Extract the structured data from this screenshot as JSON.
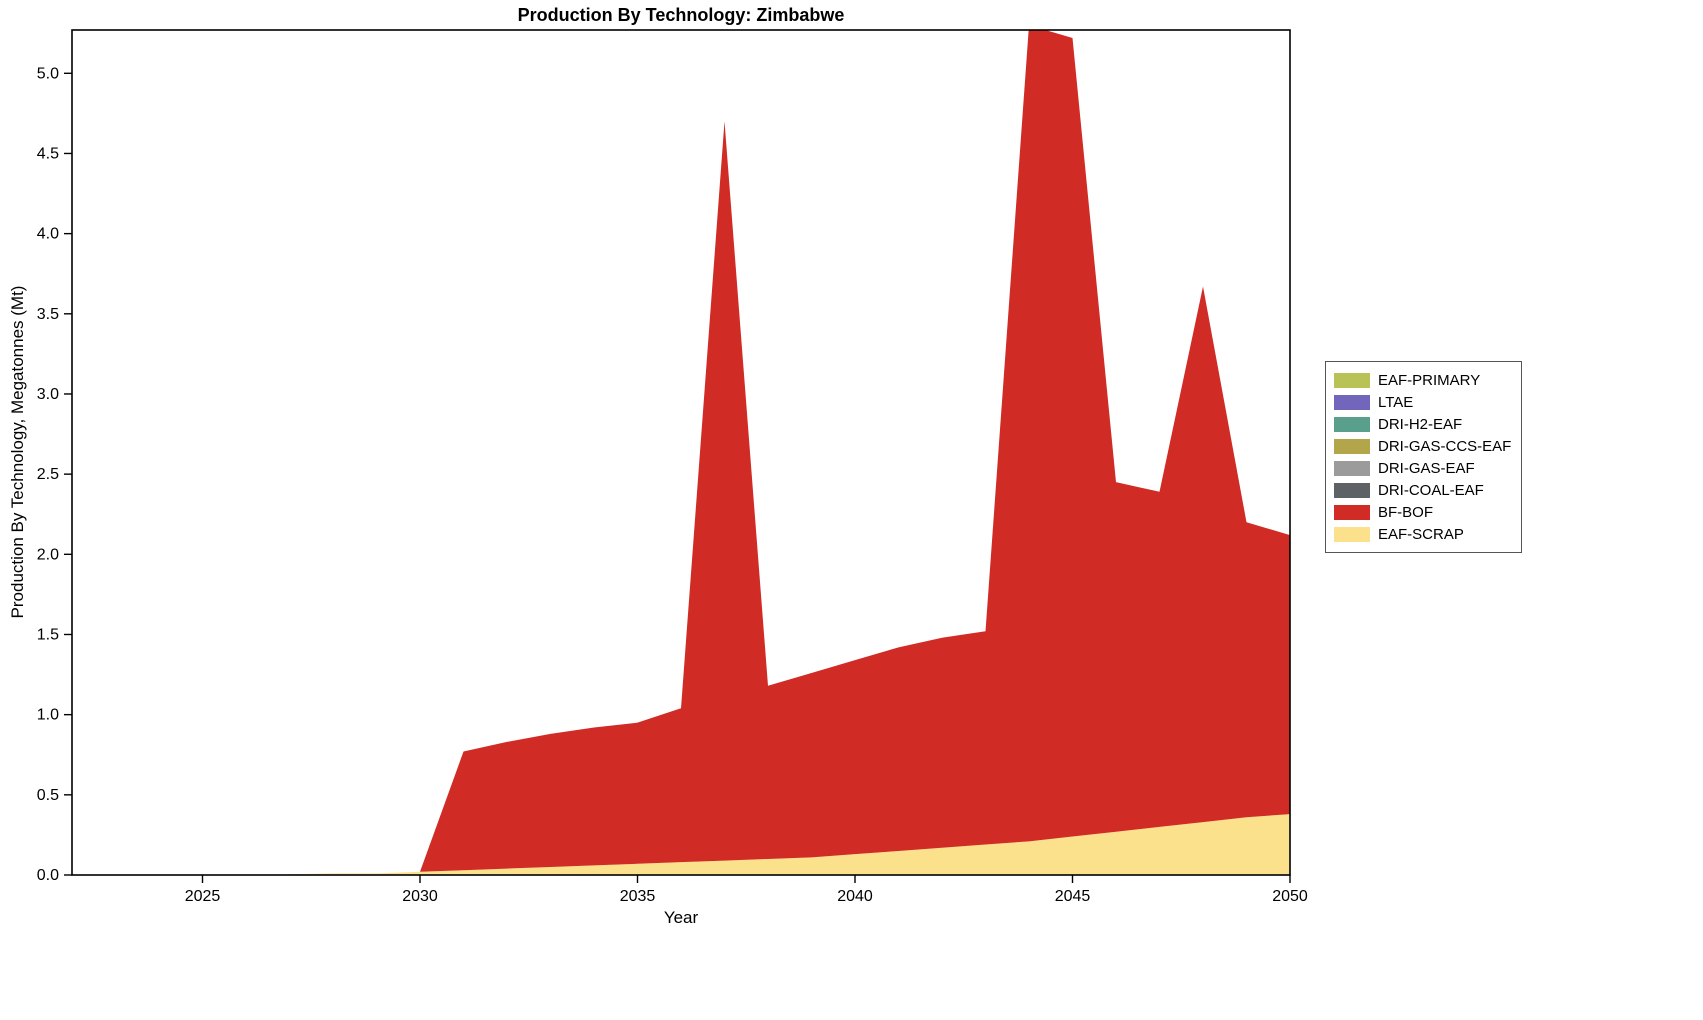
{
  "figure": {
    "title": "Production By Technology: Zimbabwe",
    "xlabel": "Year",
    "ylabel": "Production By Technology, Megatonnes (Mt)"
  },
  "chart_data": {
    "type": "area",
    "stacked": true,
    "title": "Production By Technology: Zimbabwe",
    "xlabel": "Year",
    "ylabel": "Production By Technology, Megatonnes (Mt)",
    "grid": false,
    "legend_position": "right-outside",
    "xlim": [
      2022,
      2050
    ],
    "ylim": [
      0,
      5.27
    ],
    "xticks": [
      2025,
      2030,
      2035,
      2040,
      2045,
      2050
    ],
    "xtick_labels": [
      "2025",
      "2030",
      "2035",
      "2040",
      "2045",
      "2050"
    ],
    "yticks": [
      0,
      0.5,
      1.0,
      1.5,
      2.0,
      2.5,
      3.0,
      3.5,
      4.0,
      4.5,
      5.0
    ],
    "ytick_labels": [
      "0.0",
      "0.5",
      "1.0",
      "1.5",
      "2.0",
      "2.5",
      "3.0",
      "3.5",
      "4.0",
      "4.5",
      "5.0"
    ],
    "x": [
      2022,
      2023,
      2024,
      2025,
      2026,
      2027,
      2028,
      2029,
      2030,
      2031,
      2032,
      2033,
      2034,
      2035,
      2036,
      2037,
      2038,
      2039,
      2040,
      2041,
      2042,
      2043,
      2044,
      2045,
      2046,
      2047,
      2048,
      2049,
      2050
    ],
    "series": [
      {
        "name": "EAF-SCRAP",
        "color": "#FCE18C",
        "values": [
          0,
          0,
          0,
          0,
          0,
          0.005,
          0.01,
          0.01,
          0.02,
          0.03,
          0.04,
          0.05,
          0.06,
          0.07,
          0.08,
          0.09,
          0.1,
          0.11,
          0.13,
          0.15,
          0.17,
          0.19,
          0.21,
          0.24,
          0.27,
          0.3,
          0.33,
          0.36,
          0.38
        ]
      },
      {
        "name": "BF-BOF",
        "color": "#D12B26",
        "values": [
          0,
          0,
          0,
          0,
          0,
          0,
          0,
          0,
          0,
          0.74,
          0.79,
          0.83,
          0.86,
          0.88,
          0.96,
          4.61,
          1.08,
          1.15,
          1.21,
          1.27,
          1.31,
          1.33,
          5.09,
          4.98,
          2.18,
          2.09,
          3.34,
          1.84,
          1.74
        ]
      },
      {
        "name": "DRI-COAL-EAF",
        "color": "#5E6266",
        "values": [
          0,
          0,
          0,
          0,
          0,
          0,
          0,
          0,
          0,
          0,
          0,
          0,
          0,
          0,
          0,
          0,
          0,
          0,
          0,
          0,
          0,
          0,
          0,
          0,
          0,
          0,
          0,
          0,
          0
        ]
      },
      {
        "name": "DRI-GAS-EAF",
        "color": "#9B9B9B",
        "values": [
          0,
          0,
          0,
          0,
          0,
          0,
          0,
          0,
          0,
          0,
          0,
          0,
          0,
          0,
          0,
          0,
          0,
          0,
          0,
          0,
          0,
          0,
          0,
          0,
          0,
          0,
          0,
          0,
          0
        ]
      },
      {
        "name": "DRI-GAS-CCS-EAF",
        "color": "#B3A549",
        "values": [
          0,
          0,
          0,
          0,
          0,
          0,
          0,
          0,
          0,
          0,
          0,
          0,
          0,
          0,
          0,
          0,
          0,
          0,
          0,
          0,
          0,
          0,
          0,
          0,
          0,
          0,
          0,
          0,
          0
        ]
      },
      {
        "name": "DRI-H2-EAF",
        "color": "#5A9E8C",
        "values": [
          0,
          0,
          0,
          0,
          0,
          0,
          0,
          0,
          0,
          0,
          0,
          0,
          0,
          0,
          0,
          0,
          0,
          0,
          0,
          0,
          0,
          0,
          0,
          0,
          0,
          0,
          0,
          0,
          0
        ]
      },
      {
        "name": "LTAE",
        "color": "#7166BB",
        "values": [
          0,
          0,
          0,
          0,
          0,
          0,
          0,
          0,
          0,
          0,
          0,
          0,
          0,
          0,
          0,
          0,
          0,
          0,
          0,
          0,
          0,
          0,
          0,
          0,
          0,
          0,
          0,
          0,
          0
        ]
      },
      {
        "name": "EAF-PRIMARY",
        "color": "#B8C255",
        "values": [
          0,
          0,
          0,
          0,
          0,
          0,
          0,
          0,
          0,
          0,
          0,
          0,
          0,
          0,
          0,
          0,
          0,
          0,
          0,
          0,
          0,
          0,
          0,
          0,
          0,
          0,
          0,
          0,
          0
        ]
      }
    ],
    "legend_order": [
      "EAF-PRIMARY",
      "LTAE",
      "DRI-H2-EAF",
      "DRI-GAS-CCS-EAF",
      "DRI-GAS-EAF",
      "DRI-COAL-EAF",
      "BF-BOF",
      "EAF-SCRAP"
    ]
  }
}
